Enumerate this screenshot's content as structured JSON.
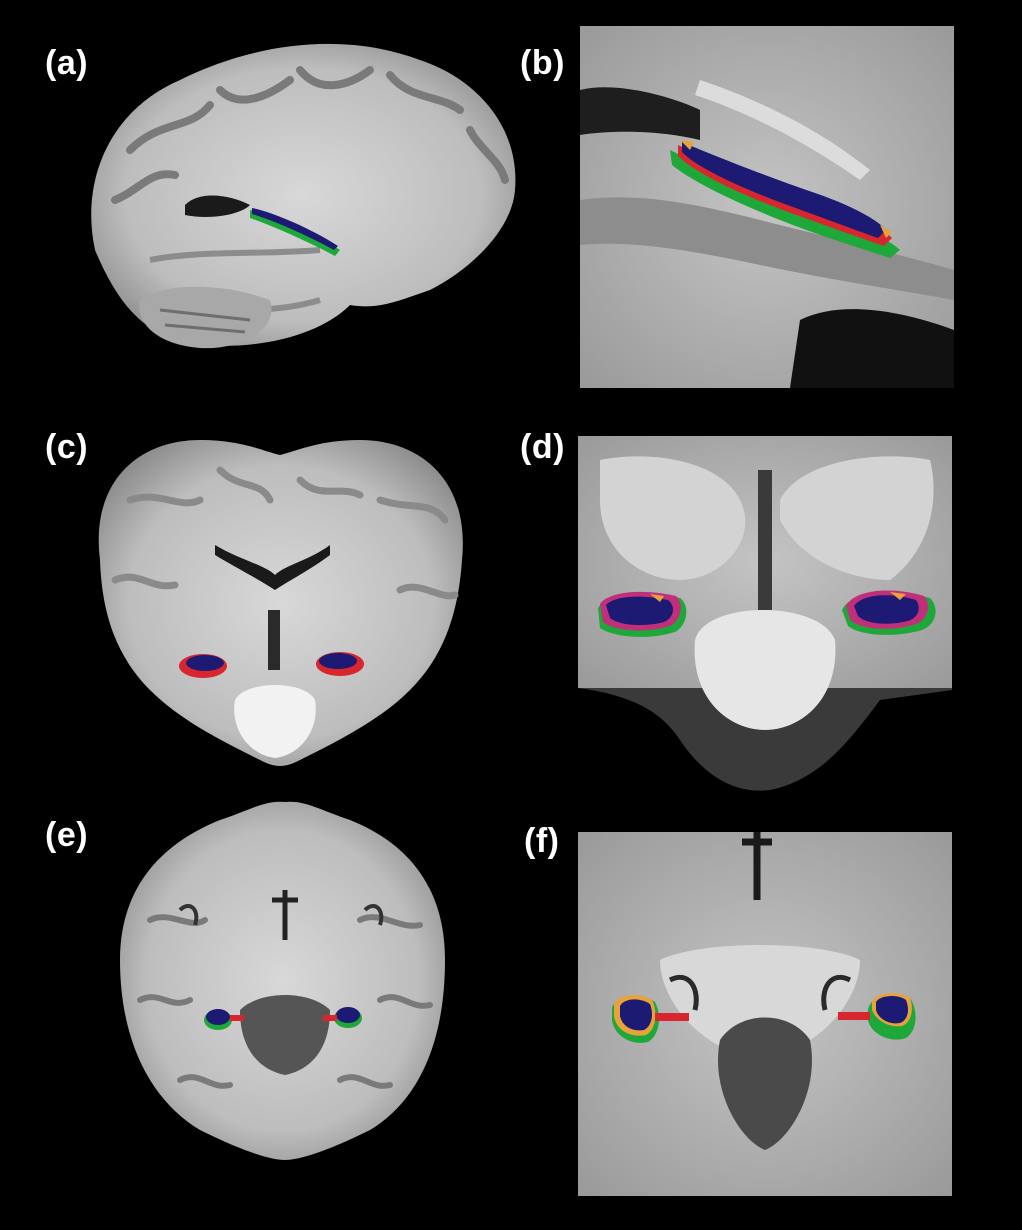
{
  "figure": {
    "panels": [
      {
        "label": "(a)",
        "view": "sagittal"
      },
      {
        "label": "(b)",
        "view": "sagittal-zoom"
      },
      {
        "label": "(c)",
        "view": "coronal"
      },
      {
        "label": "(d)",
        "view": "coronal-zoom"
      },
      {
        "label": "(e)",
        "view": "axial"
      },
      {
        "label": "(f)",
        "view": "axial-zoom"
      }
    ],
    "colors": {
      "background": "#000000",
      "label_text": "#ffffff",
      "segmentation_core": "#1c1a72",
      "segmentation_green": "#1fa83a",
      "segmentation_red": "#d8262e",
      "segmentation_orange": "#e8a23a",
      "segmentation_magenta": "#c0307a"
    }
  }
}
